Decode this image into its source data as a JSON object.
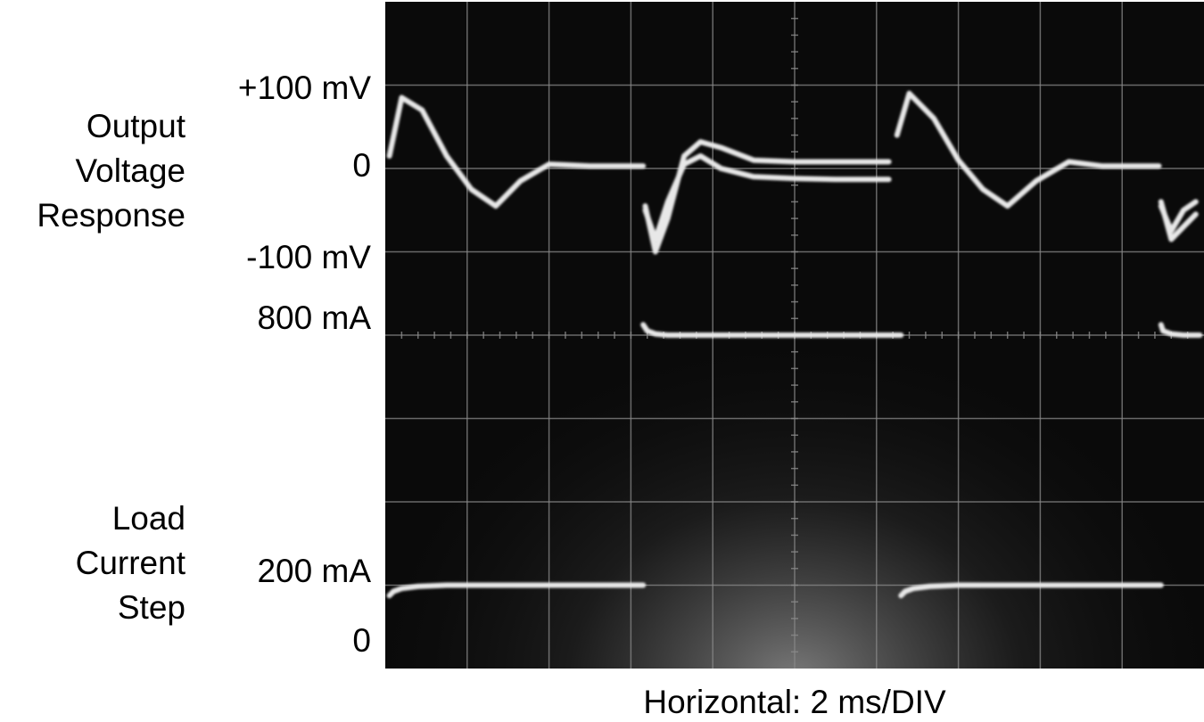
{
  "chart_data": {
    "type": "line",
    "title": "",
    "subtitle": "",
    "xlabel": "Horizontal: 2 ms/DIV",
    "x_unit": "ms",
    "xlim": [
      0,
      20
    ],
    "divisions": {
      "x": 10,
      "y": 8
    },
    "grid": true,
    "background_color": "#0a0a0a",
    "trace_color": "#e8e8e8",
    "grid_color": "#8a8a8a",
    "panels": [
      {
        "label": "Output\nVoltage\nResponse",
        "y_unit": "mV",
        "tick_labels": [
          "+100 mV",
          "0",
          "-100 mV"
        ],
        "tick_values": [
          100,
          0,
          -100
        ],
        "series": [
          {
            "x": [
              0.1,
              0.4,
              0.9,
              1.5,
              2.1,
              2.7,
              3.3,
              4.0,
              5.0,
              6.0,
              6.3
            ],
            "y": [
              15,
              85,
              70,
              15,
              -25,
              -45,
              -15,
              5,
              3,
              3,
              3
            ]
          },
          {
            "x": [
              6.35,
              6.6,
              6.9,
              7.3,
              7.7,
              8.2,
              9.0,
              10.0,
              11.0,
              12.3
            ],
            "y": [
              -45,
              -100,
              -60,
              15,
              32,
              25,
              10,
              8,
              8,
              8
            ]
          },
          {
            "x": [
              6.35,
              6.6,
              6.9,
              7.3,
              7.7,
              8.2,
              9.0,
              10.0,
              11.0,
              12.3
            ],
            "y": [
              -50,
              -85,
              -40,
              5,
              15,
              0,
              -10,
              -12,
              -13,
              -13
            ]
          },
          {
            "x": [
              12.5,
              12.8,
              13.4,
              14.0,
              14.6,
              15.2,
              15.9,
              16.7,
              17.5,
              18.5,
              18.9
            ],
            "y": [
              40,
              90,
              60,
              10,
              -25,
              -45,
              -15,
              8,
              3,
              3,
              3
            ]
          },
          {
            "x": [
              18.95,
              19.2,
              19.5,
              19.8
            ],
            "y": [
              -40,
              -85,
              -70,
              -55
            ]
          },
          {
            "x": [
              18.95,
              19.2,
              19.5,
              19.8
            ],
            "y": [
              -45,
              -75,
              -50,
              -40
            ]
          }
        ]
      },
      {
        "label": "Load\nCurrent\nStep",
        "y_unit": "mA",
        "tick_labels": [
          "800 mA",
          "200 mA",
          "0"
        ],
        "tick_values": [
          800,
          200,
          0
        ],
        "series": [
          {
            "x": [
              0.1,
              0.2,
              0.4,
              0.8,
              1.5,
              3.0,
              5.0,
              6.3
            ],
            "y": [
              175,
              185,
              192,
              197,
              200,
              200,
              200,
              200
            ]
          },
          {
            "x": [
              6.3,
              6.4,
              6.6,
              6.9,
              7.5,
              9.0,
              11.0,
              12.6
            ],
            "y": [
              825,
              810,
              803,
              800,
              800,
              800,
              800,
              800
            ]
          },
          {
            "x": [
              12.6,
              12.7,
              12.9,
              13.3,
              14.0,
              16.0,
              18.0,
              18.95
            ],
            "y": [
              175,
              185,
              192,
              197,
              200,
              200,
              200,
              200
            ]
          },
          {
            "x": [
              18.95,
              19.0,
              19.2,
              19.5,
              19.9
            ],
            "y": [
              825,
              810,
              803,
              800,
              800
            ]
          }
        ]
      }
    ]
  }
}
